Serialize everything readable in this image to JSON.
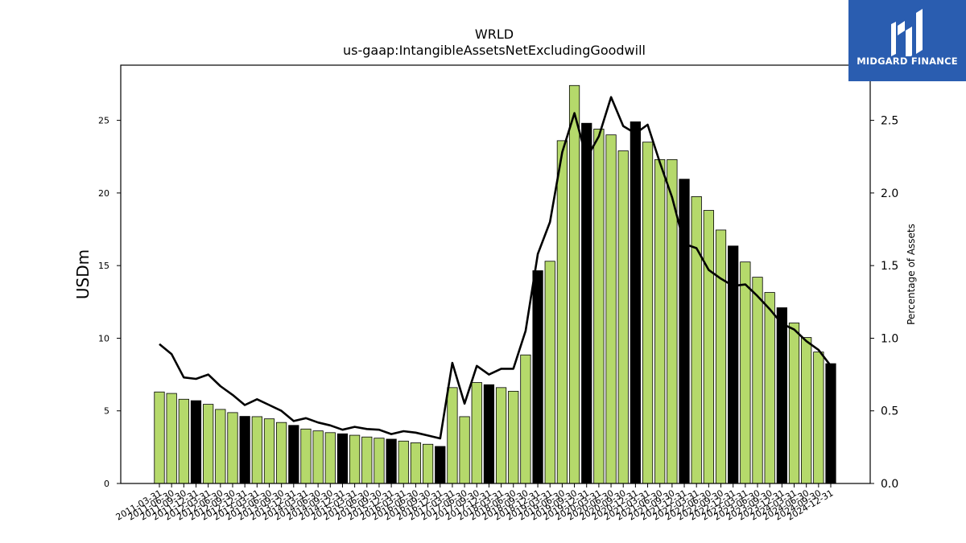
{
  "brand": {
    "name": "MIDGARD FINANCE",
    "icon": "midgard-logo-icon",
    "bg_color": "#2a5db0"
  },
  "chart_data": {
    "type": "bar",
    "title": "WRLD",
    "subtitle": "us-gaap:IntangibleAssetsNetExcludingGoodwill",
    "ylabel": "USDm",
    "y2label": "Percentage of Assets",
    "ylim": [
      0,
      28.8
    ],
    "y2lim": [
      0,
      2.88
    ],
    "yticks": [
      0,
      5,
      10,
      15,
      20,
      25
    ],
    "y2ticks": [
      "0.0",
      "0.5",
      "1.0",
      "1.5",
      "2.0",
      "2.5"
    ],
    "grid": false,
    "colors": {
      "bar_default": "#b5d96b",
      "bar_highlight": "#000000",
      "line": "#000000",
      "edge": "#000000"
    },
    "x": [
      "2011-03-31",
      "2011-06-30",
      "2011-09-30",
      "2011-12-31",
      "2012-03-31",
      "2012-06-30",
      "2012-09-30",
      "2012-12-31",
      "2013-03-31",
      "2013-06-30",
      "2013-09-30",
      "2013-12-31",
      "2014-03-31",
      "2014-06-30",
      "2014-09-30",
      "2014-12-31",
      "2015-03-31",
      "2015-06-30",
      "2015-09-30",
      "2015-12-31",
      "2016-03-31",
      "2016-06-30",
      "2016-09-30",
      "2016-12-31",
      "2017-03-31",
      "2017-06-30",
      "2017-09-30",
      "2017-12-31",
      "2018-03-31",
      "2018-06-30",
      "2018-09-30",
      "2018-12-31",
      "2019-03-31",
      "2019-06-30",
      "2019-09-30",
      "2019-12-31",
      "2020-03-31",
      "2020-06-30",
      "2020-09-30",
      "2020-12-31",
      "2021-03-31",
      "2021-06-30",
      "2021-09-30",
      "2021-12-31",
      "2022-03-31",
      "2022-06-30",
      "2022-09-30",
      "2022-12-31",
      "2023-03-31",
      "2023-06-30",
      "2023-09-30",
      "2023-12-31",
      "2024-03-31",
      "2024-06-30",
      "2024-09-30",
      "2024-12-31"
    ],
    "tick_labels": [
      "2011-03-31",
      "2011-06-30",
      "2011-09-30",
      "2011-12-31",
      "2012-03-31",
      "2012-06-30",
      "2012-09-30",
      "2012-12-31",
      "2013-03-31",
      "2013-06-30",
      "2013-09-30",
      "2013-12-31",
      "2014-03-31",
      "2014-06-30",
      "2014-09-30",
      "2014-12-31",
      "2015-03-31",
      "2015-06-30",
      "2015-09-30",
      "2015-12-31",
      "2016-03-31",
      "2016-06-30",
      "2016-09-30",
      "2016-12-31",
      "2017-03-31",
      "2017-06-30",
      "2017-09-30",
      "2017-12-31",
      "2018-03-31",
      "2018-06-30",
      "2018-09-30",
      "2018-12-31",
      "2019-03-31",
      "2019-06-30",
      "2019-09-30",
      "2019-12-31",
      "2020-03-31",
      "2020-06-30",
      "2020-09-30",
      "2020-12-31",
      "2021-03-31",
      "2021-06-30",
      "2021-09-30",
      "2021-12-31",
      "2022-03-31",
      "2022-06-30",
      "2022-09-30",
      "2022-12-31",
      "2023-03-31",
      "2023-06-30",
      "2023-09-30",
      "2023-12-31",
      "2024-03-31",
      "2024-06-30",
      "2024-09-30",
      "2024-12-31"
    ],
    "series": [
      {
        "type": "bar",
        "axis": "left",
        "values": [
          6.3,
          6.2,
          5.8,
          5.7,
          5.45,
          5.1,
          4.88,
          4.62,
          4.6,
          4.45,
          4.2,
          4.0,
          3.75,
          3.62,
          3.5,
          3.42,
          3.32,
          3.2,
          3.12,
          3.05,
          2.92,
          2.8,
          2.7,
          2.55,
          6.6,
          4.6,
          6.95,
          6.8,
          6.6,
          6.35,
          8.85,
          14.65,
          15.3,
          23.6,
          27.4,
          24.8,
          24.4,
          24.0,
          22.9,
          24.9,
          23.5,
          22.3,
          22.3,
          20.95,
          19.75,
          18.8,
          17.45,
          16.35,
          15.25,
          14.2,
          13.15,
          12.1,
          11.05,
          10.05,
          9.05,
          8.25
        ]
      },
      {
        "type": "line",
        "axis": "right",
        "values": [
          0.96,
          0.89,
          0.73,
          0.72,
          0.75,
          0.67,
          0.61,
          0.54,
          0.58,
          0.54,
          0.5,
          0.43,
          0.45,
          0.42,
          0.4,
          0.37,
          0.39,
          0.375,
          0.37,
          0.34,
          0.36,
          0.35,
          0.33,
          0.31,
          0.83,
          0.55,
          0.81,
          0.75,
          0.79,
          0.79,
          1.05,
          1.58,
          1.8,
          2.28,
          2.55,
          2.24,
          2.39,
          2.66,
          2.46,
          2.41,
          2.47,
          2.21,
          1.97,
          1.65,
          1.62,
          1.47,
          1.41,
          1.36,
          1.37,
          1.29,
          1.2,
          1.1,
          1.06,
          0.98,
          0.92,
          0.81
        ]
      }
    ]
  }
}
